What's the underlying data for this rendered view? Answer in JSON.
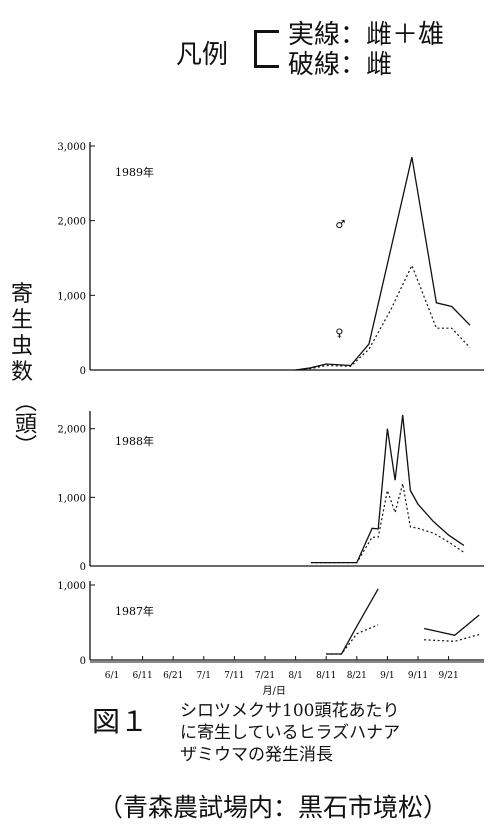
{
  "legend": {
    "label": "凡例",
    "line1": "実線：雌＋雄",
    "line2": "破線：雌"
  },
  "ylabel_chars": [
    "寄",
    "生",
    "虫",
    "数",
    "（頭）"
  ],
  "xlabel": "月/日",
  "figure": {
    "number": "図１",
    "caption_lines": [
      "シロツメクサ100頭花あたり",
      "に寄生しているヒラズハナア",
      "ザミウマの発生消長"
    ]
  },
  "source": "（青森農試場内：黒石市境松）",
  "chart_data": {
    "type": "line",
    "x_ticks": [
      "6/1",
      "6/11",
      "6/21",
      "7/1",
      "7/11",
      "7/21",
      "8/1",
      "8/11",
      "8/21",
      "9/1",
      "9/11",
      "9/21"
    ],
    "panels": [
      {
        "name": "1989年",
        "yticks": [
          "0",
          "1,000",
          "2,000",
          "3,000"
        ],
        "ylim": [
          0,
          3000
        ],
        "annotations": [
          {
            "text": "♂",
            "x": 7.3,
            "y": 1900
          },
          {
            "text": "♀",
            "x": 7.3,
            "y": 450
          }
        ],
        "series": [
          {
            "style": "solid",
            "x": [
              6,
              6.5,
              7,
              7.8,
              8.4,
              9.1,
              9.8,
              10.6,
              11.1,
              11.7,
              12.4
            ],
            "y": [
              0,
              30,
              80,
              60,
              350,
              1600,
              2850,
              900,
              850,
              600,
              null
            ]
          },
          {
            "style": "dashed",
            "x": [
              6,
              6.5,
              7,
              7.8,
              8.4,
              9.1,
              9.8,
              10.6,
              11.1,
              11.7,
              12.4
            ],
            "y": [
              0,
              20,
              60,
              50,
              280,
              800,
              1400,
              560,
              560,
              300,
              null
            ]
          }
        ]
      },
      {
        "name": "1988年",
        "yticks": [
          "0",
          "1,000",
          "2,000"
        ],
        "ylim": [
          0,
          2200
        ],
        "series": [
          {
            "style": "solid",
            "x": [
              6.5,
              7,
              7.5,
              8,
              8.5,
              8.7,
              9,
              9.25,
              9.5,
              9.75,
              10,
              10.5,
              11,
              11.5,
              12
            ],
            "y": [
              50,
              50,
              50,
              50,
              550,
              540,
              2000,
              1250,
              2200,
              1100,
              900,
              650,
              450,
              300,
              null
            ]
          },
          {
            "style": "dashed",
            "x": [
              6.5,
              7,
              7.5,
              8,
              8.5,
              8.7,
              9,
              9.25,
              9.5,
              9.75,
              10,
              10.5,
              11,
              11.5,
              12
            ],
            "y": [
              50,
              50,
              50,
              50,
              420,
              420,
              1100,
              780,
              1200,
              570,
              550,
              480,
              350,
              200,
              null
            ]
          }
        ]
      },
      {
        "name": "1987年",
        "yticks": [
          "0",
          "1,000"
        ],
        "ylim": [
          0,
          1000
        ],
        "series": [
          {
            "style": "solid",
            "segments": [
              {
                "x": [
                  7,
                  7.5,
                  8,
                  8.7
                ],
                "y": [
                  80,
                  80,
                  450,
                  950
                ]
              },
              {
                "x": [
                  10.2,
                  11.2,
                  12
                ],
                "y": [
                  420,
                  330,
                  600
                ]
              }
            ]
          },
          {
            "style": "dashed",
            "segments": [
              {
                "x": [
                  7,
                  7.5,
                  8,
                  8.7
                ],
                "y": [
                  80,
                  80,
                  350,
                  470
                ]
              },
              {
                "x": [
                  10.2,
                  11.2,
                  12
                ],
                "y": [
                  270,
                  250,
                  340
                ]
              }
            ]
          }
        ]
      }
    ]
  }
}
